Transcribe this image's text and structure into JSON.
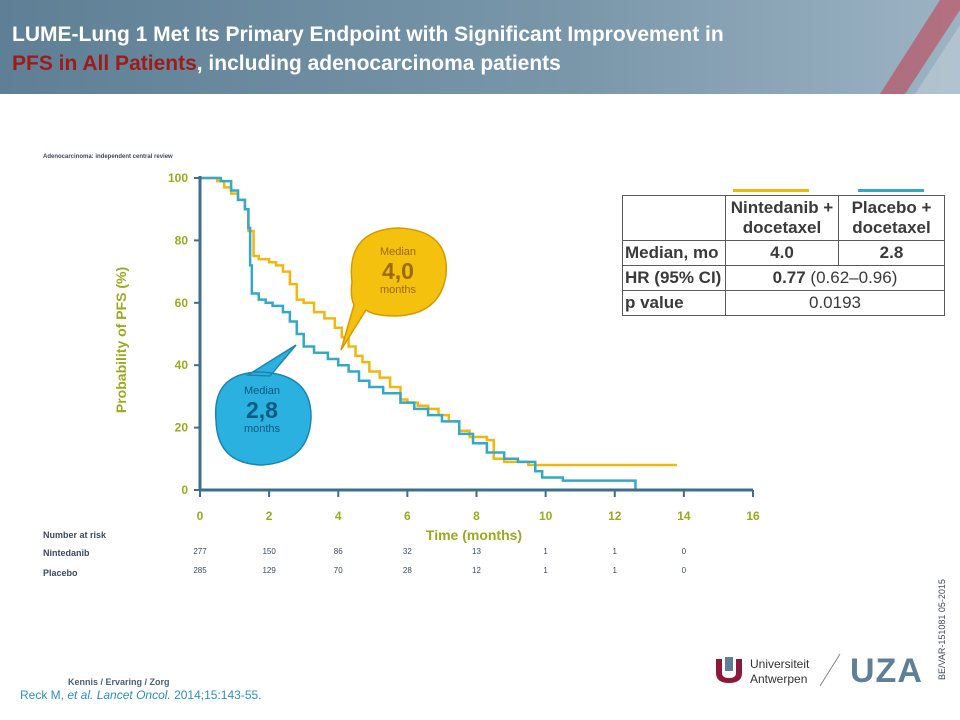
{
  "header": {
    "title_part1": "LUME-Lung 1 Met Its Primary Endpoint with Significant Improvement in",
    "title_highlight": "PFS in All Patients",
    "title_part2": ", including adenocarcinoma patients"
  },
  "chart_note": "Adenocarcinoma: independent central review",
  "chart_data": {
    "type": "line",
    "title": "",
    "xlabel": "Time (months)",
    "ylabel": "Probability of PFS (%)",
    "xlim": [
      0,
      16
    ],
    "ylim": [
      0,
      100
    ],
    "xticks": [
      0,
      2,
      4,
      6,
      8,
      10,
      12,
      14,
      16
    ],
    "yticks": [
      0,
      20,
      40,
      60,
      80,
      100
    ],
    "colors": {
      "axis": "#3d6e8c",
      "ticklabel": "#9aaa1e",
      "nintedanib": "#f2b70f",
      "placebo": "#35a8c6"
    },
    "series": [
      {
        "name": "Nintedanib",
        "step": true,
        "points": [
          [
            0,
            100
          ],
          [
            0.5,
            99
          ],
          [
            0.7,
            97
          ],
          [
            0.9,
            95
          ],
          [
            1.1,
            93
          ],
          [
            1.3,
            90
          ],
          [
            1.4,
            83
          ],
          [
            1.55,
            75
          ],
          [
            1.7,
            74
          ],
          [
            2.0,
            73
          ],
          [
            2.2,
            72
          ],
          [
            2.4,
            70
          ],
          [
            2.6,
            66
          ],
          [
            2.8,
            61
          ],
          [
            3.0,
            60
          ],
          [
            3.3,
            57
          ],
          [
            3.6,
            55
          ],
          [
            3.9,
            52
          ],
          [
            4.1,
            49
          ],
          [
            4.3,
            46
          ],
          [
            4.5,
            43
          ],
          [
            4.7,
            41
          ],
          [
            4.9,
            38
          ],
          [
            5.2,
            36
          ],
          [
            5.5,
            33
          ],
          [
            5.8,
            29
          ],
          [
            6.0,
            28
          ],
          [
            6.3,
            27
          ],
          [
            6.6,
            26
          ],
          [
            6.9,
            24
          ],
          [
            7.2,
            22
          ],
          [
            7.5,
            19
          ],
          [
            7.8,
            17
          ],
          [
            8.3,
            16
          ],
          [
            8.5,
            10
          ],
          [
            8.8,
            9
          ],
          [
            9.5,
            8
          ],
          [
            10.5,
            8
          ],
          [
            13.8,
            8
          ]
        ]
      },
      {
        "name": "Placebo",
        "step": true,
        "points": [
          [
            0,
            100
          ],
          [
            0.6,
            99
          ],
          [
            0.9,
            96
          ],
          [
            1.1,
            93
          ],
          [
            1.3,
            90
          ],
          [
            1.4,
            84
          ],
          [
            1.45,
            72
          ],
          [
            1.5,
            63
          ],
          [
            1.7,
            61
          ],
          [
            1.9,
            60
          ],
          [
            2.1,
            59
          ],
          [
            2.4,
            57
          ],
          [
            2.6,
            54
          ],
          [
            2.8,
            50
          ],
          [
            3.0,
            46
          ],
          [
            3.3,
            44
          ],
          [
            3.7,
            42
          ],
          [
            4.0,
            40
          ],
          [
            4.3,
            38
          ],
          [
            4.6,
            35
          ],
          [
            4.9,
            33
          ],
          [
            5.3,
            31
          ],
          [
            5.8,
            28
          ],
          [
            6.2,
            26
          ],
          [
            6.6,
            24
          ],
          [
            7.0,
            22
          ],
          [
            7.5,
            18
          ],
          [
            7.9,
            15
          ],
          [
            8.3,
            12
          ],
          [
            8.8,
            10
          ],
          [
            9.2,
            9
          ],
          [
            9.7,
            6
          ],
          [
            9.9,
            4
          ],
          [
            10.5,
            3
          ],
          [
            12.6,
            0
          ]
        ]
      }
    ],
    "annotations": [
      {
        "series": "Nintedanib",
        "label": "Median",
        "value": "4,0",
        "unit": "months"
      },
      {
        "series": "Placebo",
        "label": "Median",
        "value": "2,8",
        "unit": "months"
      }
    ],
    "at_risk": {
      "title": "Number at risk",
      "times": [
        0,
        2,
        4,
        6,
        8,
        10,
        12,
        14
      ],
      "rows": [
        {
          "label": "Nintedanib",
          "values": [
            "277",
            "150",
            "86",
            "32",
            "13",
            "1",
            "1",
            "0"
          ]
        },
        {
          "label": "Placebo",
          "values": [
            "285",
            "129",
            "70",
            "28",
            "12",
            "1",
            "1",
            "0"
          ]
        }
      ]
    }
  },
  "stats_table": {
    "col_nintedanib": "Nintedanib + docetaxel",
    "col_placebo": "Placebo + docetaxel",
    "median_label": "Median, mo",
    "median_nintedanib": "4.0",
    "median_placebo": "2.8",
    "hr_label": "HR (95% CI)",
    "hr_value": "0.77",
    "hr_ci": " (0.62–0.96)",
    "p_label": "p value",
    "p_value": "0.0193"
  },
  "footer": {
    "tagline": "Kennis / Ervaring / Zorg",
    "citation_authors": "Reck M, ",
    "citation_etal": "et al.",
    "citation_journal": "Lancet Oncol.",
    "citation_rest": " 2014;15:143-55.",
    "side_code": "BE/VAR-151081  05-2015",
    "logo_univ_line1": "Universiteit",
    "logo_univ_line2": "Antwerpen",
    "logo_uza": "UZA"
  }
}
